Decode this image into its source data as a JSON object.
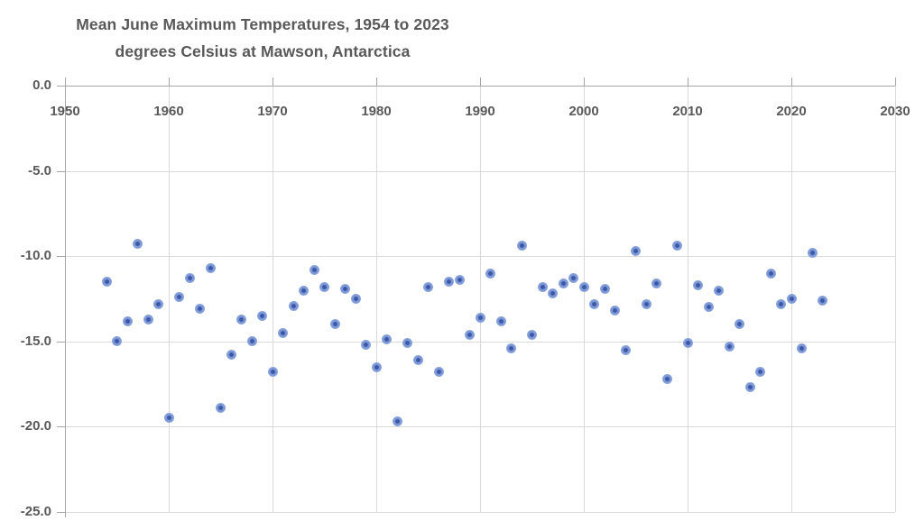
{
  "header": {
    "title_line1": "Mean June Maximum Temperatures, 1954 to 2023",
    "title_line2": "degrees Celsius at Mawson, Antarctica"
  },
  "colors": {
    "title_text": "#595959",
    "axis_label_text": "#595959",
    "gridline": "#d9d9d9",
    "axis_line": "#a6a6a6",
    "marker_fill": "#7e9bd8",
    "marker_center": "#3d55a5",
    "background": "#ffffff"
  },
  "chart_data": {
    "type": "scatter",
    "title": "Mean June Maximum Temperatures, 1954 to 2023",
    "subtitle": "degrees Celsius at Mawson, Antarctica",
    "xlabel": "",
    "ylabel": "",
    "xlim": [
      1950,
      2030
    ],
    "ylim": [
      0,
      -25
    ],
    "grid": true,
    "legend": "none",
    "x_ticks": [
      1950,
      1960,
      1970,
      1980,
      1990,
      2000,
      2010,
      2020,
      2030
    ],
    "x_tick_labels": [
      "1950",
      "1960",
      "1970",
      "1980",
      "1990",
      "2000",
      "2010",
      "2020",
      "2030"
    ],
    "y_ticks": [
      0,
      -5,
      -10,
      -15,
      -20,
      -25
    ],
    "y_tick_labels": [
      "0.0",
      "-5.0",
      "-10.0",
      "-15.0",
      "-20.0",
      "-25.0"
    ],
    "series": [
      {
        "name": "Mean June maximum temperature (degrees Celsius)",
        "x": [
          1954,
          1955,
          1956,
          1957,
          1958,
          1959,
          1960,
          1961,
          1962,
          1963,
          1964,
          1965,
          1966,
          1967,
          1968,
          1969,
          1970,
          1971,
          1972,
          1973,
          1974,
          1975,
          1976,
          1977,
          1978,
          1979,
          1980,
          1981,
          1982,
          1983,
          1984,
          1985,
          1986,
          1987,
          1988,
          1989,
          1990,
          1991,
          1992,
          1993,
          1994,
          1995,
          1996,
          1997,
          1998,
          1999,
          2000,
          2001,
          2002,
          2003,
          2004,
          2005,
          2006,
          2007,
          2008,
          2009,
          2010,
          2011,
          2012,
          2013,
          2014,
          2015,
          2016,
          2017,
          2018,
          2019,
          2020,
          2021,
          2022,
          2023
        ],
        "y": [
          -11.5,
          -15.0,
          -13.8,
          -9.3,
          -13.7,
          -12.8,
          -19.5,
          -12.4,
          -11.3,
          -13.1,
          -10.7,
          -18.9,
          -15.8,
          -13.7,
          -15.0,
          -13.5,
          -16.8,
          -14.5,
          -12.9,
          -12.0,
          -10.8,
          -11.8,
          -14.0,
          -11.9,
          -12.5,
          -15.2,
          -16.5,
          -14.9,
          -19.7,
          -15.1,
          -16.1,
          -11.8,
          -16.8,
          -11.5,
          -11.4,
          -14.6,
          -13.6,
          -11.0,
          -13.8,
          -15.4,
          -9.4,
          -14.6,
          -11.8,
          -12.2,
          -11.6,
          -11.3,
          -11.8,
          -12.8,
          -11.9,
          -13.2,
          -15.5,
          -9.7,
          -12.8,
          -11.6,
          -17.2,
          -9.4,
          -15.1,
          -11.7,
          -13.0,
          -12.0,
          -15.3,
          -14.0,
          -17.7,
          -16.8,
          -11.0,
          -12.8,
          -12.5,
          -15.4,
          -9.8,
          -12.6
        ]
      }
    ]
  }
}
